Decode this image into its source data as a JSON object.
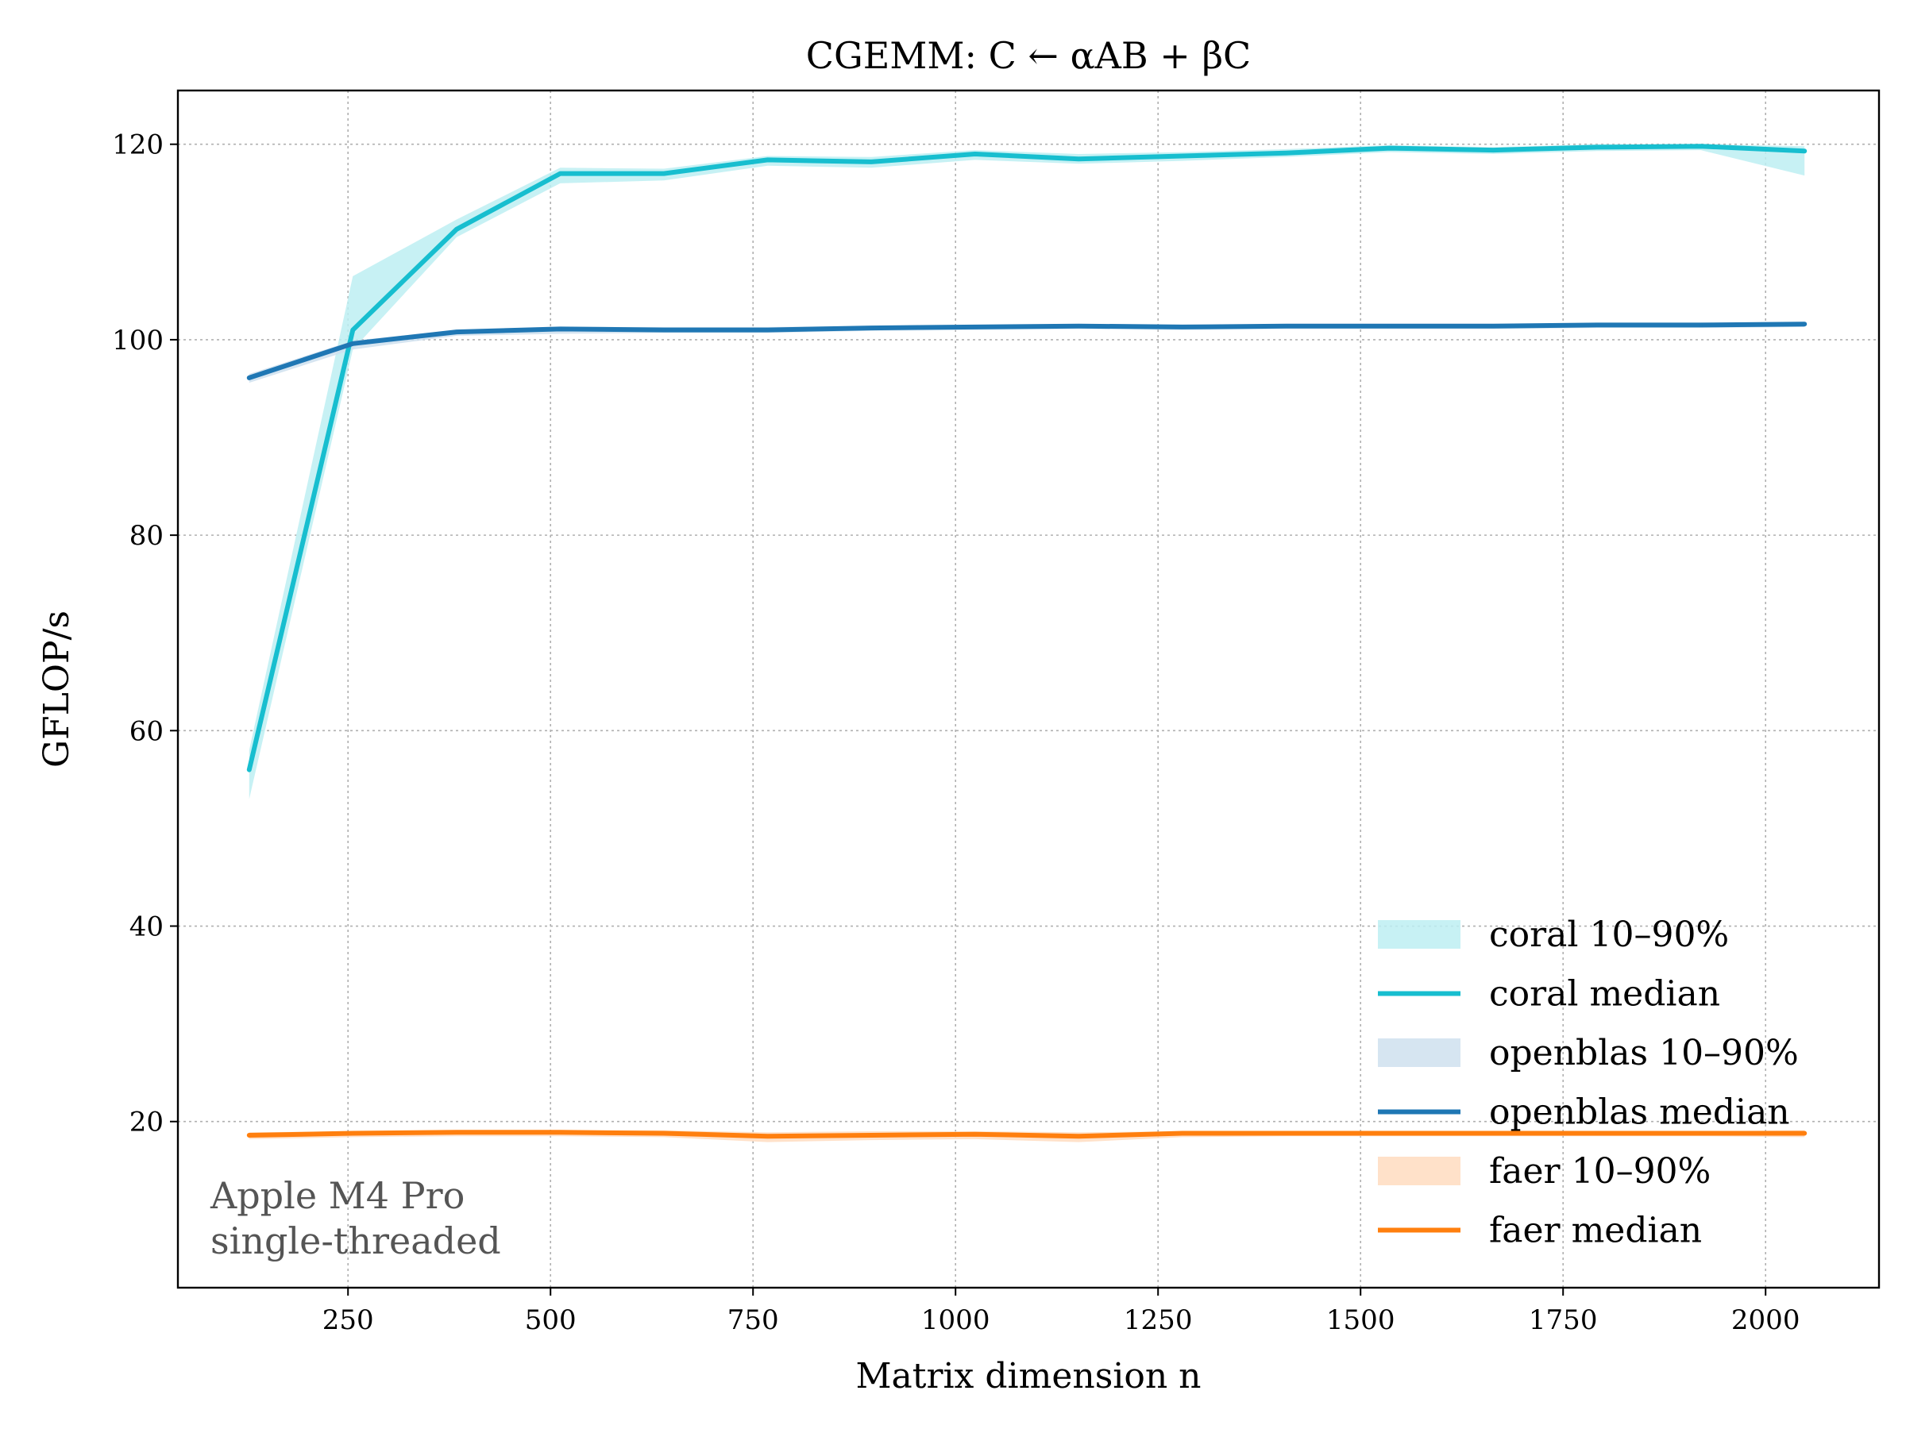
{
  "chart_data": {
    "type": "line",
    "title": "CGEMM: C ← αAB + βC",
    "xlabel": "Matrix dimension n",
    "ylabel": "GFLOP/s",
    "xlim": [
      40,
      2140
    ],
    "ylim": [
      3,
      125.5
    ],
    "xticks": [
      250,
      500,
      750,
      1000,
      1250,
      1500,
      1750,
      2000
    ],
    "yticks": [
      20,
      40,
      60,
      80,
      100,
      120
    ],
    "grid": true,
    "legend_position": "lower-right",
    "annotation": [
      "Apple M4 Pro",
      "single-threaded"
    ],
    "x": [
      128,
      256,
      384,
      512,
      640,
      768,
      896,
      1024,
      1152,
      1280,
      1408,
      1536,
      1664,
      1792,
      1920,
      2048
    ],
    "series": [
      {
        "name": "coral median",
        "color": "#17becf",
        "median": [
          56.0,
          101.0,
          111.3,
          117.0,
          117.0,
          118.4,
          118.2,
          119.0,
          118.5,
          118.8,
          119.1,
          119.6,
          119.4,
          119.7,
          119.8,
          119.3
        ],
        "band_name": "coral 10–90%",
        "band_color": "#bdeef2",
        "p10": [
          53.0,
          99.0,
          110.5,
          116.0,
          116.3,
          117.8,
          117.6,
          118.4,
          118.0,
          118.3,
          118.7,
          119.2,
          119.0,
          119.3,
          119.4,
          116.8
        ],
        "p90": [
          58.0,
          106.5,
          112.3,
          117.6,
          117.5,
          118.8,
          118.7,
          119.4,
          119.0,
          119.2,
          119.5,
          119.9,
          119.7,
          120.0,
          120.0,
          119.8
        ]
      },
      {
        "name": "openblas median",
        "color": "#1f77b4",
        "median": [
          96.1,
          99.6,
          100.8,
          101.1,
          101.0,
          101.0,
          101.2,
          101.3,
          101.4,
          101.3,
          101.4,
          101.4,
          101.4,
          101.5,
          101.5,
          101.6
        ],
        "band_name": "openblas 10–90%",
        "band_color": "#cfe0ee",
        "p10": [
          95.6,
          99.0,
          100.4,
          100.6,
          100.7,
          100.7,
          100.9,
          101.0,
          101.1,
          101.0,
          101.1,
          101.1,
          101.1,
          101.2,
          101.2,
          101.3
        ],
        "p90": [
          96.5,
          99.9,
          101.0,
          101.3,
          101.3,
          101.3,
          101.4,
          101.5,
          101.6,
          101.5,
          101.6,
          101.6,
          101.6,
          101.7,
          101.7,
          101.8
        ]
      },
      {
        "name": "faer median",
        "color": "#ff7f0e",
        "median": [
          18.6,
          18.8,
          18.9,
          18.9,
          18.8,
          18.5,
          18.6,
          18.7,
          18.5,
          18.8,
          18.8,
          18.8,
          18.8,
          18.8,
          18.8,
          18.8
        ],
        "band_name": "faer 10–90%",
        "band_color": "#ffdcc0",
        "p10": [
          18.2,
          18.4,
          18.5,
          18.5,
          18.4,
          17.9,
          18.1,
          18.2,
          17.9,
          18.4,
          18.5,
          18.5,
          18.5,
          18.5,
          18.5,
          18.4
        ],
        "p90": [
          18.9,
          19.0,
          19.1,
          19.1,
          19.1,
          18.9,
          19.0,
          19.0,
          18.9,
          19.0,
          19.0,
          19.0,
          19.0,
          19.0,
          19.0,
          19.1
        ]
      }
    ]
  }
}
